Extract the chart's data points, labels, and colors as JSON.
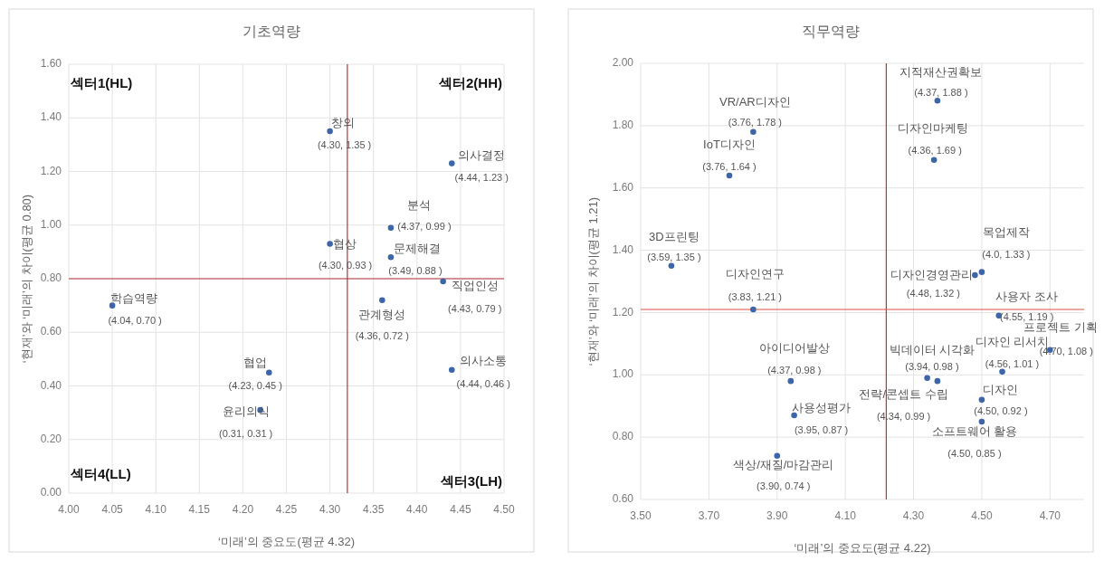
{
  "chart_data": [
    {
      "type": "scatter",
      "title": "기초역량",
      "xlabel": "‘미래’의 중요도(평균 4.32)",
      "ylabel": "‘현재’와 ‘미래’의 차이(평균 0.80)",
      "marker": "circle",
      "grid": true,
      "xlim": [
        4.0,
        4.5
      ],
      "ylim": [
        0,
        1.6
      ],
      "xticks": [
        {
          "value": 4.0,
          "label": "4.00"
        },
        {
          "value": 4.05,
          "label": "4.05"
        },
        {
          "value": 4.1,
          "label": "4.10"
        },
        {
          "value": 4.15,
          "label": "4.15"
        },
        {
          "value": 4.2,
          "label": "4.20"
        },
        {
          "value": 4.25,
          "label": "4.25"
        },
        {
          "value": 4.3,
          "label": "4.30"
        },
        {
          "value": 4.35,
          "label": "4.35"
        },
        {
          "value": 4.4,
          "label": "4.40"
        },
        {
          "value": 4.45,
          "label": "4.45"
        },
        {
          "value": 4.5,
          "label": "4.50"
        }
      ],
      "yticks": [
        {
          "value": 0,
          "label": "0.00"
        },
        {
          "value": 0.2,
          "label": "0.20"
        },
        {
          "value": 0.4,
          "label": "0.40"
        },
        {
          "value": 0.6,
          "label": "0.60"
        },
        {
          "value": 0.8,
          "label": "0.80"
        },
        {
          "value": 1.0,
          "label": "1.00"
        },
        {
          "value": 1.2,
          "label": "1.20"
        },
        {
          "value": 1.4,
          "label": "1.40"
        },
        {
          "value": 1.6,
          "label": "1.60"
        }
      ],
      "ref_lines": [
        {
          "axis": "x",
          "value": 4.32,
          "color": "#b5373a"
        },
        {
          "axis": "y",
          "value": 0.8,
          "color": "#b5373a"
        }
      ],
      "series": [
        {
          "color": "#3d66a8",
          "x": [
            4.3,
            4.44,
            4.37,
            4.3,
            4.37,
            4.05,
            4.43,
            4.36,
            4.44,
            4.23,
            4.22
          ],
          "values": [
            1.35,
            1.23,
            0.99,
            0.93,
            0.88,
            0.7,
            0.79,
            0.72,
            0.46,
            0.45,
            0.31
          ],
          "value_labels": [
            "(4.30, 1.35 )",
            "(4.44, 1.23 )",
            "(4.37, 0.99 )",
            "(4.30, 0.93 )",
            "(3.49, 0.88 )",
            "(4.04, 0.70 )",
            "(4.43, 0.79 )",
            "(4.36, 0.72 )",
            "(4.44, 0.46 )",
            "(4.23, 0.45 )",
            "(0.31, 0.31 )"
          ]
        }
      ],
      "annotations": [
        {
          "text": "창의",
          "x": 4.3,
          "y": 1.35
        },
        {
          "text": "의사결정",
          "x": 4.44,
          "y": 1.23
        },
        {
          "text": "분석",
          "x": 4.37,
          "y": 0.99
        },
        {
          "text": "협상",
          "x": 4.3,
          "y": 0.93
        },
        {
          "text": "문제해결",
          "x": 4.37,
          "y": 0.88
        },
        {
          "text": "학습역량",
          "x": 4.05,
          "y": 0.7
        },
        {
          "text": "직업인성",
          "x": 4.43,
          "y": 0.79
        },
        {
          "text": "관계형성",
          "x": 4.36,
          "y": 0.72
        },
        {
          "text": "의사소통",
          "x": 4.44,
          "y": 0.46
        },
        {
          "text": "협업",
          "x": 4.23,
          "y": 0.45
        },
        {
          "text": "윤리의식",
          "x": 4.22,
          "y": 0.31
        },
        "섹터1(HL)",
        "섹터2(HH)",
        "섹터4(LL)",
        "섹터3(LH)"
      ]
    },
    {
      "type": "scatter",
      "title": "직무역량",
      "xlabel": "‘미래’의 중요도(평균 4.22)",
      "ylabel": "‘현재’와 ‘미래’의 차이(평균 1.21)",
      "marker": "circle",
      "grid": true,
      "xlim": [
        3.5,
        4.8
      ],
      "ylim": [
        0.6,
        2.0
      ],
      "xticks": [
        {
          "value": 3.5,
          "label": "3.50"
        },
        {
          "value": 3.7,
          "label": "3.70"
        },
        {
          "value": 3.9,
          "label": "3.90"
        },
        {
          "value": 4.1,
          "label": "4.10"
        },
        {
          "value": 4.3,
          "label": "4.30"
        },
        {
          "value": 4.5,
          "label": "4.50"
        },
        {
          "value": 4.7,
          "label": "4.70"
        }
      ],
      "yticks": [
        {
          "value": 0.6,
          "label": "0.60"
        },
        {
          "value": 0.8,
          "label": "0.80"
        },
        {
          "value": 1.0,
          "label": "1.00"
        },
        {
          "value": 1.2,
          "label": "1.20"
        },
        {
          "value": 1.4,
          "label": "1.40"
        },
        {
          "value": 1.6,
          "label": "1.60"
        },
        {
          "value": 1.8,
          "label": "1.80"
        },
        {
          "value": 2.0,
          "label": "2.00"
        }
      ],
      "ref_lines": [
        {
          "axis": "x",
          "value": 4.22,
          "color": "#b5373a"
        },
        {
          "axis": "y",
          "value": 1.21,
          "color": "#e0504a"
        }
      ],
      "series": [
        {
          "color": "#3d66a8",
          "x": [
            4.37,
            3.83,
            3.76,
            4.36,
            3.59,
            4.5,
            4.48,
            3.83,
            4.55,
            4.7,
            4.56,
            3.94,
            4.37,
            4.34,
            4.5,
            3.95,
            4.5,
            3.9
          ],
          "values": [
            1.88,
            1.78,
            1.64,
            1.69,
            1.35,
            1.33,
            1.32,
            1.21,
            1.19,
            1.08,
            1.01,
            0.98,
            0.98,
            0.99,
            0.92,
            0.87,
            0.85,
            0.74
          ],
          "value_labels": [
            "(4.37, 1.88 )",
            "(3.76, 1.78 )",
            "(3.76, 1.64 )",
            "(4.36, 1.69 )",
            "(3.59, 1.35 )",
            "(4.0, 1.33 )",
            "(4.48, 1.32 )",
            "(3.83, 1.21 )",
            "(4.55, 1.19 )",
            "(4.70, 1.08 )",
            "(4.56, 1.01 )",
            "(4.37, 0.98 )",
            "(3.94, 0.98 )",
            "(4.34, 0.99 )",
            "(4.50, 0.92 )",
            "(3.95, 0.87 )",
            "(4.50, 0.85 )",
            "(3.90, 0.74 )"
          ]
        }
      ],
      "annotations": [
        {
          "text": "지적재산권확보",
          "x": 4.37,
          "y": 1.88
        },
        {
          "text": "VR/AR디자인",
          "x": 3.83,
          "y": 1.78
        },
        {
          "text": "IoT디자인",
          "x": 3.76,
          "y": 1.64
        },
        {
          "text": "디자인마케팅",
          "x": 4.36,
          "y": 1.69
        },
        {
          "text": "3D프린팅",
          "x": 3.59,
          "y": 1.35
        },
        {
          "text": "목업제작",
          "x": 4.5,
          "y": 1.33
        },
        {
          "text": "디자인경영관리",
          "x": 4.48,
          "y": 1.32
        },
        {
          "text": "디자인연구",
          "x": 3.83,
          "y": 1.21
        },
        {
          "text": "사용자 조사",
          "x": 4.55,
          "y": 1.19
        },
        {
          "text": "프로젝트 기획",
          "x": 4.7,
          "y": 1.08
        },
        {
          "text": "디자인 리서치",
          "x": 4.56,
          "y": 1.01
        },
        {
          "text": "아이디어발상",
          "x": 3.94,
          "y": 0.98
        },
        {
          "text": "빅데이터 시각화",
          "x": 4.37,
          "y": 0.98
        },
        {
          "text": "전략/콘셉트 수립",
          "x": 4.34,
          "y": 0.99
        },
        {
          "text": "디자인",
          "x": 4.5,
          "y": 0.92
        },
        {
          "text": "사용성평가",
          "x": 3.95,
          "y": 0.87
        },
        {
          "text": "소프트웨어 활용",
          "x": 4.5,
          "y": 0.85
        },
        {
          "text": "색상/재질/마감관리",
          "x": 3.9,
          "y": 0.74
        }
      ]
    }
  ]
}
